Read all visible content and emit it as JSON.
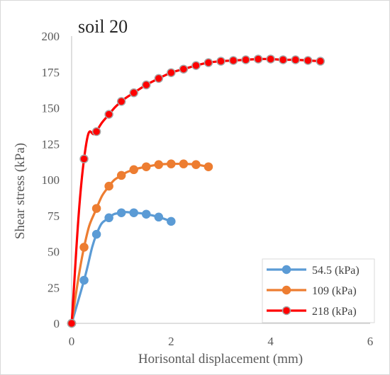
{
  "chart_data": {
    "type": "line",
    "title": "soil 20",
    "xlabel": "Horisontal displacement (mm)",
    "ylabel": "Shear stress (kPa)",
    "xlim": [
      0,
      6
    ],
    "ylim": [
      0,
      200
    ],
    "x_ticks": [
      0,
      2,
      4,
      6
    ],
    "y_ticks": [
      0,
      25,
      50,
      75,
      100,
      125,
      150,
      175,
      200
    ],
    "grid": false,
    "legend_position": "bottom-right",
    "series": [
      {
        "name": "54.5 (kPa)",
        "color": "#5b9bd5",
        "marker_edge": "#5b9bd5",
        "points": [
          [
            0,
            0
          ],
          [
            0.25,
            30
          ],
          [
            0.5,
            62
          ],
          [
            0.75,
            73.5
          ],
          [
            1.0,
            77
          ],
          [
            1.25,
            77
          ],
          [
            1.5,
            76
          ],
          [
            1.75,
            74
          ],
          [
            2.0,
            71
          ]
        ]
      },
      {
        "name": "109 (kPa)",
        "color": "#ed7d31",
        "marker_edge": "#ed7d31",
        "points": [
          [
            0,
            0
          ],
          [
            0.25,
            53
          ],
          [
            0.5,
            80
          ],
          [
            0.75,
            95.5
          ],
          [
            1.0,
            103
          ],
          [
            1.25,
            107
          ],
          [
            1.5,
            109
          ],
          [
            1.75,
            110.5
          ],
          [
            2.0,
            111
          ],
          [
            2.25,
            111
          ],
          [
            2.5,
            110.5
          ],
          [
            2.75,
            109
          ]
        ]
      },
      {
        "name": "218 (kPa)",
        "color": "#ff0000",
        "marker_edge": "#a5a5a5",
        "points": [
          [
            0,
            0
          ],
          [
            0.25,
            114.5
          ],
          [
            0.5,
            133.5
          ],
          [
            0.75,
            145.5
          ],
          [
            1.0,
            154.5
          ],
          [
            1.25,
            160.5
          ],
          [
            1.5,
            166
          ],
          [
            1.75,
            170.5
          ],
          [
            2.0,
            174.5
          ],
          [
            2.25,
            177
          ],
          [
            2.5,
            179.5
          ],
          [
            2.75,
            181.5
          ],
          [
            3.0,
            182.5
          ],
          [
            3.25,
            183
          ],
          [
            3.5,
            183.5
          ],
          [
            3.75,
            184
          ],
          [
            4.0,
            184
          ],
          [
            4.25,
            183.5
          ],
          [
            4.5,
            183.5
          ],
          [
            4.75,
            183
          ],
          [
            5.0,
            182.5
          ]
        ]
      }
    ]
  }
}
